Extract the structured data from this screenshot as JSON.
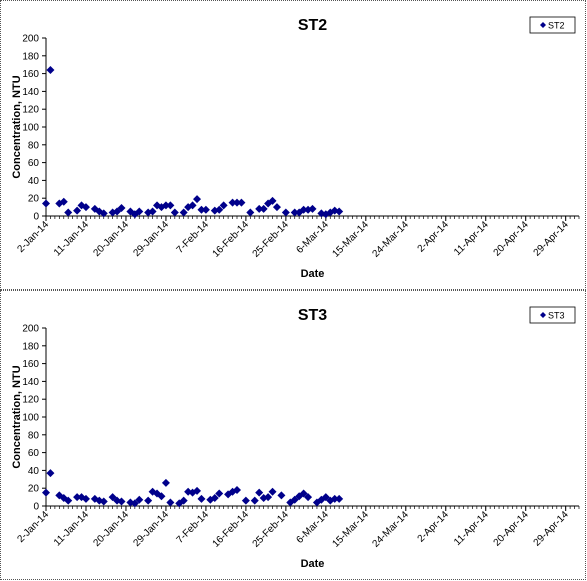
{
  "chart_data": [
    {
      "type": "scatter",
      "title": "ST2",
      "xlabel": "Date",
      "ylabel": "Concentration, NTU",
      "ylim": [
        0,
        200
      ],
      "yticks": [
        0,
        20,
        40,
        60,
        80,
        100,
        120,
        140,
        160,
        180,
        200
      ],
      "xlim": [
        "2014-01-02",
        "2014-05-02"
      ],
      "xtick_labels": [
        "2-Jan-14",
        "11-Jan-14",
        "20-Jan-14",
        "29-Jan-14",
        "7-Feb-14",
        "16-Feb-14",
        "25-Feb-14",
        "6-Mar-14",
        "15-Mar-14",
        "24-Mar-14",
        "2-Apr-14",
        "11-Apr-14",
        "20-Apr-14",
        "29-Apr-14"
      ],
      "xtick_dates": [
        "2014-01-02",
        "2014-01-11",
        "2014-01-20",
        "2014-01-29",
        "2014-02-07",
        "2014-02-16",
        "2014-02-25",
        "2014-03-06",
        "2014-03-15",
        "2014-03-24",
        "2014-04-02",
        "2014-04-11",
        "2014-04-20",
        "2014-04-29"
      ],
      "grid": false,
      "legend_position": "top-right",
      "color": "#00008b",
      "series": [
        {
          "name": "ST2",
          "points": [
            {
              "x": "2014-01-02",
              "y": 14
            },
            {
              "x": "2014-01-03",
              "y": 164
            },
            {
              "x": "2014-01-05",
              "y": 14
            },
            {
              "x": "2014-01-06",
              "y": 16
            },
            {
              "x": "2014-01-07",
              "y": 4
            },
            {
              "x": "2014-01-09",
              "y": 6
            },
            {
              "x": "2014-01-10",
              "y": 12
            },
            {
              "x": "2014-01-11",
              "y": 10
            },
            {
              "x": "2014-01-13",
              "y": 8
            },
            {
              "x": "2014-01-14",
              "y": 5
            },
            {
              "x": "2014-01-15",
              "y": 3
            },
            {
              "x": "2014-01-17",
              "y": 4
            },
            {
              "x": "2014-01-18",
              "y": 5
            },
            {
              "x": "2014-01-19",
              "y": 9
            },
            {
              "x": "2014-01-21",
              "y": 5
            },
            {
              "x": "2014-01-22",
              "y": 2
            },
            {
              "x": "2014-01-23",
              "y": 5
            },
            {
              "x": "2014-01-25",
              "y": 4
            },
            {
              "x": "2014-01-26",
              "y": 5
            },
            {
              "x": "2014-01-27",
              "y": 12
            },
            {
              "x": "2014-01-28",
              "y": 10
            },
            {
              "x": "2014-01-29",
              "y": 12
            },
            {
              "x": "2014-01-30",
              "y": 12
            },
            {
              "x": "2014-01-31",
              "y": 4
            },
            {
              "x": "2014-02-02",
              "y": 4
            },
            {
              "x": "2014-02-03",
              "y": 10
            },
            {
              "x": "2014-02-04",
              "y": 12
            },
            {
              "x": "2014-02-05",
              "y": 19
            },
            {
              "x": "2014-02-06",
              "y": 7
            },
            {
              "x": "2014-02-07",
              "y": 7
            },
            {
              "x": "2014-02-09",
              "y": 6
            },
            {
              "x": "2014-02-10",
              "y": 7
            },
            {
              "x": "2014-02-11",
              "y": 12
            },
            {
              "x": "2014-02-13",
              "y": 15
            },
            {
              "x": "2014-02-14",
              "y": 15
            },
            {
              "x": "2014-02-15",
              "y": 15
            },
            {
              "x": "2014-02-17",
              "y": 4
            },
            {
              "x": "2014-02-19",
              "y": 8
            },
            {
              "x": "2014-02-20",
              "y": 8
            },
            {
              "x": "2014-02-21",
              "y": 14
            },
            {
              "x": "2014-02-22",
              "y": 17
            },
            {
              "x": "2014-02-23",
              "y": 10
            },
            {
              "x": "2014-02-25",
              "y": 4
            },
            {
              "x": "2014-02-27",
              "y": 4
            },
            {
              "x": "2014-02-28",
              "y": 4
            },
            {
              "x": "2014-03-01",
              "y": 7
            },
            {
              "x": "2014-03-02",
              "y": 7
            },
            {
              "x": "2014-03-03",
              "y": 8
            },
            {
              "x": "2014-03-05",
              "y": 3
            },
            {
              "x": "2014-03-06",
              "y": 2
            },
            {
              "x": "2014-03-07",
              "y": 4
            },
            {
              "x": "2014-03-08",
              "y": 6
            },
            {
              "x": "2014-03-09",
              "y": 5
            }
          ]
        }
      ]
    },
    {
      "type": "scatter",
      "title": "ST3",
      "xlabel": "Date",
      "ylabel": "Concentration, NTU",
      "ylim": [
        0,
        200
      ],
      "yticks": [
        0,
        20,
        40,
        60,
        80,
        100,
        120,
        140,
        160,
        180,
        200
      ],
      "xlim": [
        "2014-01-02",
        "2014-05-02"
      ],
      "xtick_labels": [
        "2-Jan-14",
        "11-Jan-14",
        "20-Jan-14",
        "29-Jan-14",
        "7-Feb-14",
        "16-Feb-14",
        "25-Feb-14",
        "6-Mar-14",
        "15-Mar-14",
        "24-Mar-14",
        "2-Apr-14",
        "11-Apr-14",
        "20-Apr-14",
        "29-Apr-14"
      ],
      "xtick_dates": [
        "2014-01-02",
        "2014-01-11",
        "2014-01-20",
        "2014-01-29",
        "2014-02-07",
        "2014-02-16",
        "2014-02-25",
        "2014-03-06",
        "2014-03-15",
        "2014-03-24",
        "2014-04-02",
        "2014-04-11",
        "2014-04-20",
        "2014-04-29"
      ],
      "grid": false,
      "legend_position": "top-right",
      "color": "#00008b",
      "series": [
        {
          "name": "ST3",
          "points": [
            {
              "x": "2014-01-02",
              "y": 15
            },
            {
              "x": "2014-01-03",
              "y": 37
            },
            {
              "x": "2014-01-05",
              "y": 12
            },
            {
              "x": "2014-01-06",
              "y": 9
            },
            {
              "x": "2014-01-07",
              "y": 6
            },
            {
              "x": "2014-01-09",
              "y": 10
            },
            {
              "x": "2014-01-10",
              "y": 10
            },
            {
              "x": "2014-01-11",
              "y": 8
            },
            {
              "x": "2014-01-13",
              "y": 8
            },
            {
              "x": "2014-01-14",
              "y": 6
            },
            {
              "x": "2014-01-15",
              "y": 5
            },
            {
              "x": "2014-01-17",
              "y": 10
            },
            {
              "x": "2014-01-18",
              "y": 6
            },
            {
              "x": "2014-01-19",
              "y": 5
            },
            {
              "x": "2014-01-21",
              "y": 4
            },
            {
              "x": "2014-01-22",
              "y": 3
            },
            {
              "x": "2014-01-23",
              "y": 7
            },
            {
              "x": "2014-01-25",
              "y": 6
            },
            {
              "x": "2014-01-26",
              "y": 16
            },
            {
              "x": "2014-01-27",
              "y": 14
            },
            {
              "x": "2014-01-28",
              "y": 11
            },
            {
              "x": "2014-01-29",
              "y": 26
            },
            {
              "x": "2014-01-30",
              "y": 4
            },
            {
              "x": "2014-02-01",
              "y": 3
            },
            {
              "x": "2014-02-02",
              "y": 6
            },
            {
              "x": "2014-02-03",
              "y": 16
            },
            {
              "x": "2014-02-04",
              "y": 15
            },
            {
              "x": "2014-02-05",
              "y": 17
            },
            {
              "x": "2014-02-06",
              "y": 8
            },
            {
              "x": "2014-02-08",
              "y": 7
            },
            {
              "x": "2014-02-09",
              "y": 9
            },
            {
              "x": "2014-02-10",
              "y": 14
            },
            {
              "x": "2014-02-12",
              "y": 13
            },
            {
              "x": "2014-02-13",
              "y": 16
            },
            {
              "x": "2014-02-14",
              "y": 18
            },
            {
              "x": "2014-02-16",
              "y": 6
            },
            {
              "x": "2014-02-18",
              "y": 6
            },
            {
              "x": "2014-02-19",
              "y": 15
            },
            {
              "x": "2014-02-20",
              "y": 9
            },
            {
              "x": "2014-02-21",
              "y": 10
            },
            {
              "x": "2014-02-22",
              "y": 16
            },
            {
              "x": "2014-02-24",
              "y": 12
            },
            {
              "x": "2014-02-26",
              "y": 4
            },
            {
              "x": "2014-02-27",
              "y": 7
            },
            {
              "x": "2014-02-28",
              "y": 11
            },
            {
              "x": "2014-03-01",
              "y": 14
            },
            {
              "x": "2014-03-02",
              "y": 10
            },
            {
              "x": "2014-03-04",
              "y": 4
            },
            {
              "x": "2014-03-05",
              "y": 7
            },
            {
              "x": "2014-03-06",
              "y": 10
            },
            {
              "x": "2014-03-07",
              "y": 6
            },
            {
              "x": "2014-03-08",
              "y": 8
            },
            {
              "x": "2014-03-09",
              "y": 8
            }
          ]
        }
      ]
    }
  ]
}
